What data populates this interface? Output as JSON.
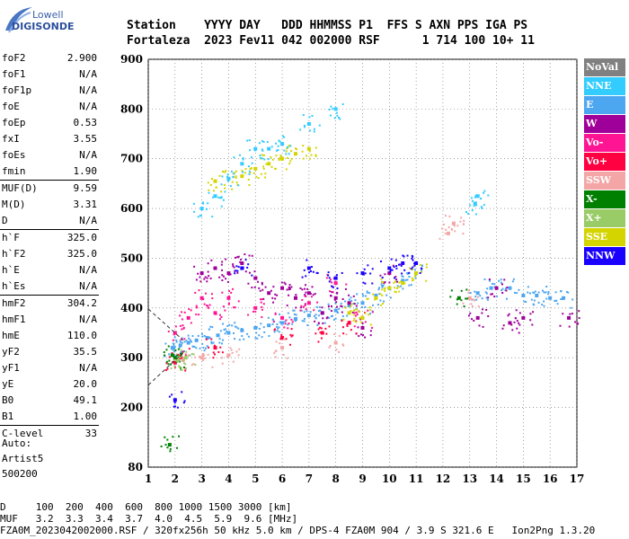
{
  "logo": {
    "top": "Lowell",
    "main": "DIGISONDE"
  },
  "header": {
    "line1": "Station    YYYY DAY   DDD HHMMSS P1  FFS S AXN PPS IGA PS",
    "line2": "Fortaleza  2023 Fev11 042 002000 RSF      1 714 100 10+ 11"
  },
  "params": [
    {
      "name": "foF2",
      "value": "2.900"
    },
    {
      "name": "foF1",
      "value": "N/A"
    },
    {
      "name": "foF1p",
      "value": "N/A"
    },
    {
      "name": "foE",
      "value": "N/A"
    },
    {
      "name": "foEp",
      "value": "0.53"
    },
    {
      "name": "fxI",
      "value": "3.55"
    },
    {
      "name": "foEs",
      "value": "N/A"
    },
    {
      "name": "fmin",
      "value": "1.90"
    },
    {
      "name": "MUF(D)",
      "value": "9.59"
    },
    {
      "name": "M(D)",
      "value": "3.31"
    },
    {
      "name": "D",
      "value": "N/A"
    },
    {
      "name": "h`F",
      "value": "325.0"
    },
    {
      "name": "h`F2",
      "value": "325.0"
    },
    {
      "name": "h`E",
      "value": "N/A"
    },
    {
      "name": "h`Es",
      "value": "N/A"
    },
    {
      "name": "hmF2",
      "value": "304.2"
    },
    {
      "name": "hmF1",
      "value": "N/A"
    },
    {
      "name": "hmE",
      "value": "110.0"
    },
    {
      "name": "yF2",
      "value": "35.5"
    },
    {
      "name": "yF1",
      "value": "N/A"
    },
    {
      "name": "yE",
      "value": "20.0"
    },
    {
      "name": "B0",
      "value": "49.1"
    },
    {
      "name": "B1",
      "value": "1.00"
    },
    {
      "name": "C-level",
      "value": "33"
    }
  ],
  "auto": {
    "line1": "Auto:",
    "line2": "Artist5",
    "line3": "500200"
  },
  "legend": [
    {
      "label": "NoVal",
      "color": "#808080"
    },
    {
      "label": "NNE",
      "color": "#33ccff"
    },
    {
      "label": "E",
      "color": "#4da6f0"
    },
    {
      "label": "W",
      "color": "#a0009a"
    },
    {
      "label": "Vo-",
      "color": "#ff1493"
    },
    {
      "label": "Vo+",
      "color": "#ff0040"
    },
    {
      "label": "SSW",
      "color": "#f4a6a6"
    },
    {
      "label": "X-",
      "color": "#008000"
    },
    {
      "label": "X+",
      "color": "#99cc66"
    },
    {
      "label": "SSE",
      "color": "#d4d400"
    },
    {
      "label": "NNW",
      "color": "#1a00ff"
    }
  ],
  "chart_data": {
    "type": "scatter",
    "xlabel": "",
    "ylabel": "",
    "xlim": [
      1,
      17
    ],
    "ylim": [
      80,
      900
    ],
    "xticks": [
      1,
      2,
      3,
      4,
      5,
      6,
      7,
      8,
      9,
      10,
      11,
      12,
      13,
      14,
      15,
      16,
      17
    ],
    "yticks": [
      80,
      200,
      300,
      400,
      500,
      600,
      700,
      800,
      900
    ],
    "grid": true,
    "series": [
      {
        "name": "E",
        "color": "#4da6f0",
        "points": [
          [
            1.9,
            320
          ],
          [
            2.2,
            325
          ],
          [
            2.5,
            330
          ],
          [
            2.8,
            335
          ],
          [
            3.2,
            340
          ],
          [
            3.6,
            345
          ],
          [
            4.0,
            350
          ],
          [
            4.5,
            355
          ],
          [
            5.0,
            360
          ],
          [
            5.5,
            365
          ],
          [
            6.0,
            370
          ],
          [
            6.5,
            378
          ],
          [
            7.0,
            385
          ],
          [
            7.5,
            390
          ],
          [
            8.0,
            395
          ],
          [
            8.5,
            405
          ],
          [
            9.0,
            410
          ],
          [
            9.5,
            425
          ],
          [
            10.0,
            440
          ],
          [
            10.5,
            455
          ],
          [
            11.0,
            470
          ],
          [
            13.3,
            430
          ],
          [
            13.8,
            440
          ],
          [
            14.5,
            440
          ],
          [
            15.0,
            425
          ],
          [
            15.5,
            425
          ],
          [
            16.0,
            420
          ],
          [
            16.5,
            420
          ]
        ]
      },
      {
        "name": "W",
        "color": "#a0009a",
        "points": [
          [
            3.0,
            470
          ],
          [
            3.5,
            480
          ],
          [
            4.0,
            470
          ],
          [
            4.5,
            490
          ],
          [
            5.0,
            460
          ],
          [
            5.5,
            430
          ],
          [
            6.0,
            440
          ],
          [
            6.5,
            420
          ],
          [
            7.0,
            430
          ],
          [
            7.5,
            390
          ],
          [
            8.0,
            420
          ],
          [
            8.5,
            410
          ],
          [
            9.0,
            360
          ],
          [
            10.0,
            470
          ],
          [
            13.3,
            380
          ],
          [
            14.0,
            440
          ],
          [
            14.5,
            370
          ],
          [
            15.0,
            380
          ],
          [
            16.7,
            380
          ]
        ]
      },
      {
        "name": "Vo-",
        "color": "#ff1493",
        "points": [
          [
            2.0,
            350
          ],
          [
            2.5,
            380
          ],
          [
            3.0,
            420
          ],
          [
            3.5,
            390
          ],
          [
            4.0,
            420
          ],
          [
            5.0,
            400
          ],
          [
            6.0,
            380
          ],
          [
            7.0,
            410
          ],
          [
            8.0,
            450
          ],
          [
            9.0,
            380
          ]
        ]
      },
      {
        "name": "Vo+",
        "color": "#ff0040",
        "points": [
          [
            2.0,
            290
          ],
          [
            2.2,
            300
          ],
          [
            3.5,
            320
          ],
          [
            6.0,
            340
          ],
          [
            7.5,
            350
          ],
          [
            8.5,
            370
          ]
        ]
      },
      {
        "name": "SSW",
        "color": "#f4a6a6",
        "points": [
          [
            2.3,
            295
          ],
          [
            3.0,
            300
          ],
          [
            4.0,
            305
          ],
          [
            6.0,
            320
          ],
          [
            8.0,
            330
          ],
          [
            12.2,
            550
          ],
          [
            12.4,
            570
          ],
          [
            13.0,
            420
          ]
        ]
      },
      {
        "name": "X-",
        "color": "#008000",
        "points": [
          [
            1.9,
            305
          ],
          [
            2.0,
            300
          ],
          [
            1.8,
            125
          ],
          [
            12.6,
            420
          ]
        ]
      },
      {
        "name": "X+",
        "color": "#99cc66",
        "points": [
          [
            2.1,
            295
          ],
          [
            2.4,
            300
          ]
        ]
      },
      {
        "name": "SSE",
        "color": "#d4d400",
        "points": [
          [
            3.5,
            655
          ],
          [
            4.0,
            660
          ],
          [
            4.5,
            665
          ],
          [
            5.0,
            680
          ],
          [
            5.5,
            690
          ],
          [
            6.0,
            700
          ],
          [
            6.5,
            710
          ],
          [
            7.0,
            720
          ],
          [
            9.5,
            420
          ],
          [
            10.0,
            440
          ],
          [
            10.5,
            450
          ],
          [
            11.0,
            470
          ],
          [
            9.0,
            380
          ],
          [
            8.5,
            390
          ]
        ]
      },
      {
        "name": "NNE",
        "color": "#33ccff",
        "points": [
          [
            3.0,
            600
          ],
          [
            3.5,
            625
          ],
          [
            4.0,
            660
          ],
          [
            4.5,
            690
          ],
          [
            5.0,
            720
          ],
          [
            5.5,
            720
          ],
          [
            6.0,
            730
          ],
          [
            7.0,
            770
          ],
          [
            8.0,
            800
          ],
          [
            13.2,
            610
          ],
          [
            13.3,
            625
          ]
        ]
      },
      {
        "name": "NNW",
        "color": "#1a00ff",
        "points": [
          [
            4.5,
            480
          ],
          [
            7.0,
            480
          ],
          [
            8.0,
            460
          ],
          [
            9.0,
            470
          ],
          [
            10.0,
            480
          ],
          [
            11.0,
            490
          ],
          [
            10.5,
            490
          ],
          [
            2.0,
            215
          ]
        ]
      }
    ]
  },
  "footer": {
    "line1": "D     100  200  400  600  800 1000 1500 3000 [km]",
    "line2": "MUF   3.2  3.3  3.4  3.7  4.0  4.5  5.9  9.6 [MHz]",
    "line3": "FZA0M_2023042002000.RSF / 320fx256h 50 kHz 5.0 km / DPS-4 FZA0M 904 / 3.9 S 321.6 E   Ion2Png 1.3.20"
  }
}
